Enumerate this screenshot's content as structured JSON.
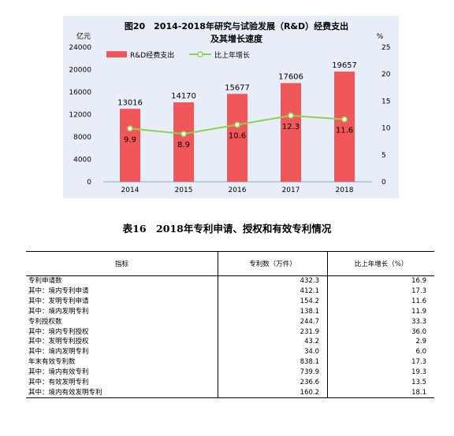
{
  "chart": {
    "title_line1": "图20　2014-2018年研究与试验发展（R&D）经费支出",
    "title_line2": "及其增长速度",
    "left_unit": "亿元",
    "right_unit": "%",
    "colors": {
      "bar": "#f0575a",
      "line": "#8fd14f",
      "panel": "#e8eef7"
    }
  },
  "chart_data": {
    "type": "bar",
    "categories": [
      "2014",
      "2015",
      "2016",
      "2017",
      "2018"
    ],
    "series": [
      {
        "name": "R&D经费支出",
        "type": "bar",
        "axis": "left",
        "values": [
          13016,
          14170,
          15677,
          17606,
          19657
        ]
      },
      {
        "name": "比上年增长",
        "type": "line",
        "axis": "right",
        "values": [
          9.9,
          8.9,
          10.6,
          12.3,
          11.6
        ]
      }
    ],
    "y_left": {
      "range": [
        0,
        24000
      ],
      "ticks": [
        0,
        4000,
        8000,
        12000,
        16000,
        20000,
        24000
      ]
    },
    "y_right": {
      "range": [
        0,
        25
      ],
      "ticks": [
        0,
        5,
        10,
        15,
        20,
        25
      ]
    },
    "legend_position": "top-left",
    "grid": false
  },
  "table": {
    "title": "表16　2018年专利申请、授权和有效专利情况",
    "headers": [
      "指标",
      "专利数（万件）",
      "比上年增长（%）"
    ],
    "rows": [
      {
        "name": "专利申请数",
        "value": "432.3",
        "rate": "16.9",
        "indent": 0
      },
      {
        "name": "其中：境内专利申请",
        "value": "412.1",
        "rate": "17.3",
        "indent": 1
      },
      {
        "name": "其中：发明专利申请",
        "value": "154.2",
        "rate": "11.6",
        "indent": 1
      },
      {
        "name": "其中：境内发明专利",
        "value": "138.1",
        "rate": "11.9",
        "indent": 2
      },
      {
        "name": "专利授权数",
        "value": "244.7",
        "rate": "33.3",
        "indent": 0
      },
      {
        "name": "其中：境内专利授权",
        "value": "231.9",
        "rate": "36.0",
        "indent": 1
      },
      {
        "name": "其中：发明专利授权",
        "value": "43.2",
        "rate": "2.9",
        "indent": 1
      },
      {
        "name": "其中：境内发明专利",
        "value": "34.0",
        "rate": "6.0",
        "indent": 2
      },
      {
        "name": "年末有效专利数",
        "value": "838.1",
        "rate": "17.3",
        "indent": 0
      },
      {
        "name": "其中：境内有效专利",
        "value": "739.9",
        "rate": "19.3",
        "indent": 1
      },
      {
        "name": "其中：有效发明专利",
        "value": "236.6",
        "rate": "13.5",
        "indent": 1
      },
      {
        "name": "其中：境内有效发明专利",
        "value": "160.2",
        "rate": "18.1",
        "indent": 2
      }
    ]
  }
}
